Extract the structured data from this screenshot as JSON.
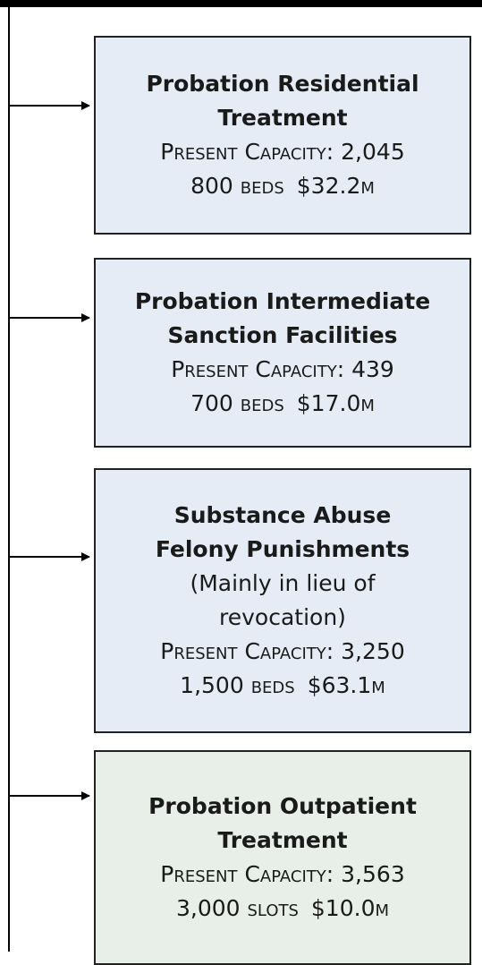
{
  "nodes": [
    {
      "lines": [
        "Probation Residential",
        "Treatment"
      ],
      "capacity": "Present Capacity: 2,045",
      "units": "800 beds",
      "cost": "$32.2m"
    },
    {
      "lines": [
        "Probation Intermediate",
        "Sanction Facilities"
      ],
      "capacity": "Present Capacity: 439",
      "units": "700 beds",
      "cost": "$17.0m"
    },
    {
      "lines": [
        "Substance Abuse",
        "Felony Punishments"
      ],
      "note": [
        "(Mainly in lieu of",
        "revocation)"
      ],
      "capacity": "Present Capacity: 3,250",
      "units": "1,500 beds",
      "cost": "$63.1m"
    },
    {
      "lines": [
        "Probation Outpatient",
        "Treatment"
      ],
      "capacity": "Present Capacity: 3,563",
      "units": "3,000 slots",
      "cost": "$10.0m"
    }
  ]
}
